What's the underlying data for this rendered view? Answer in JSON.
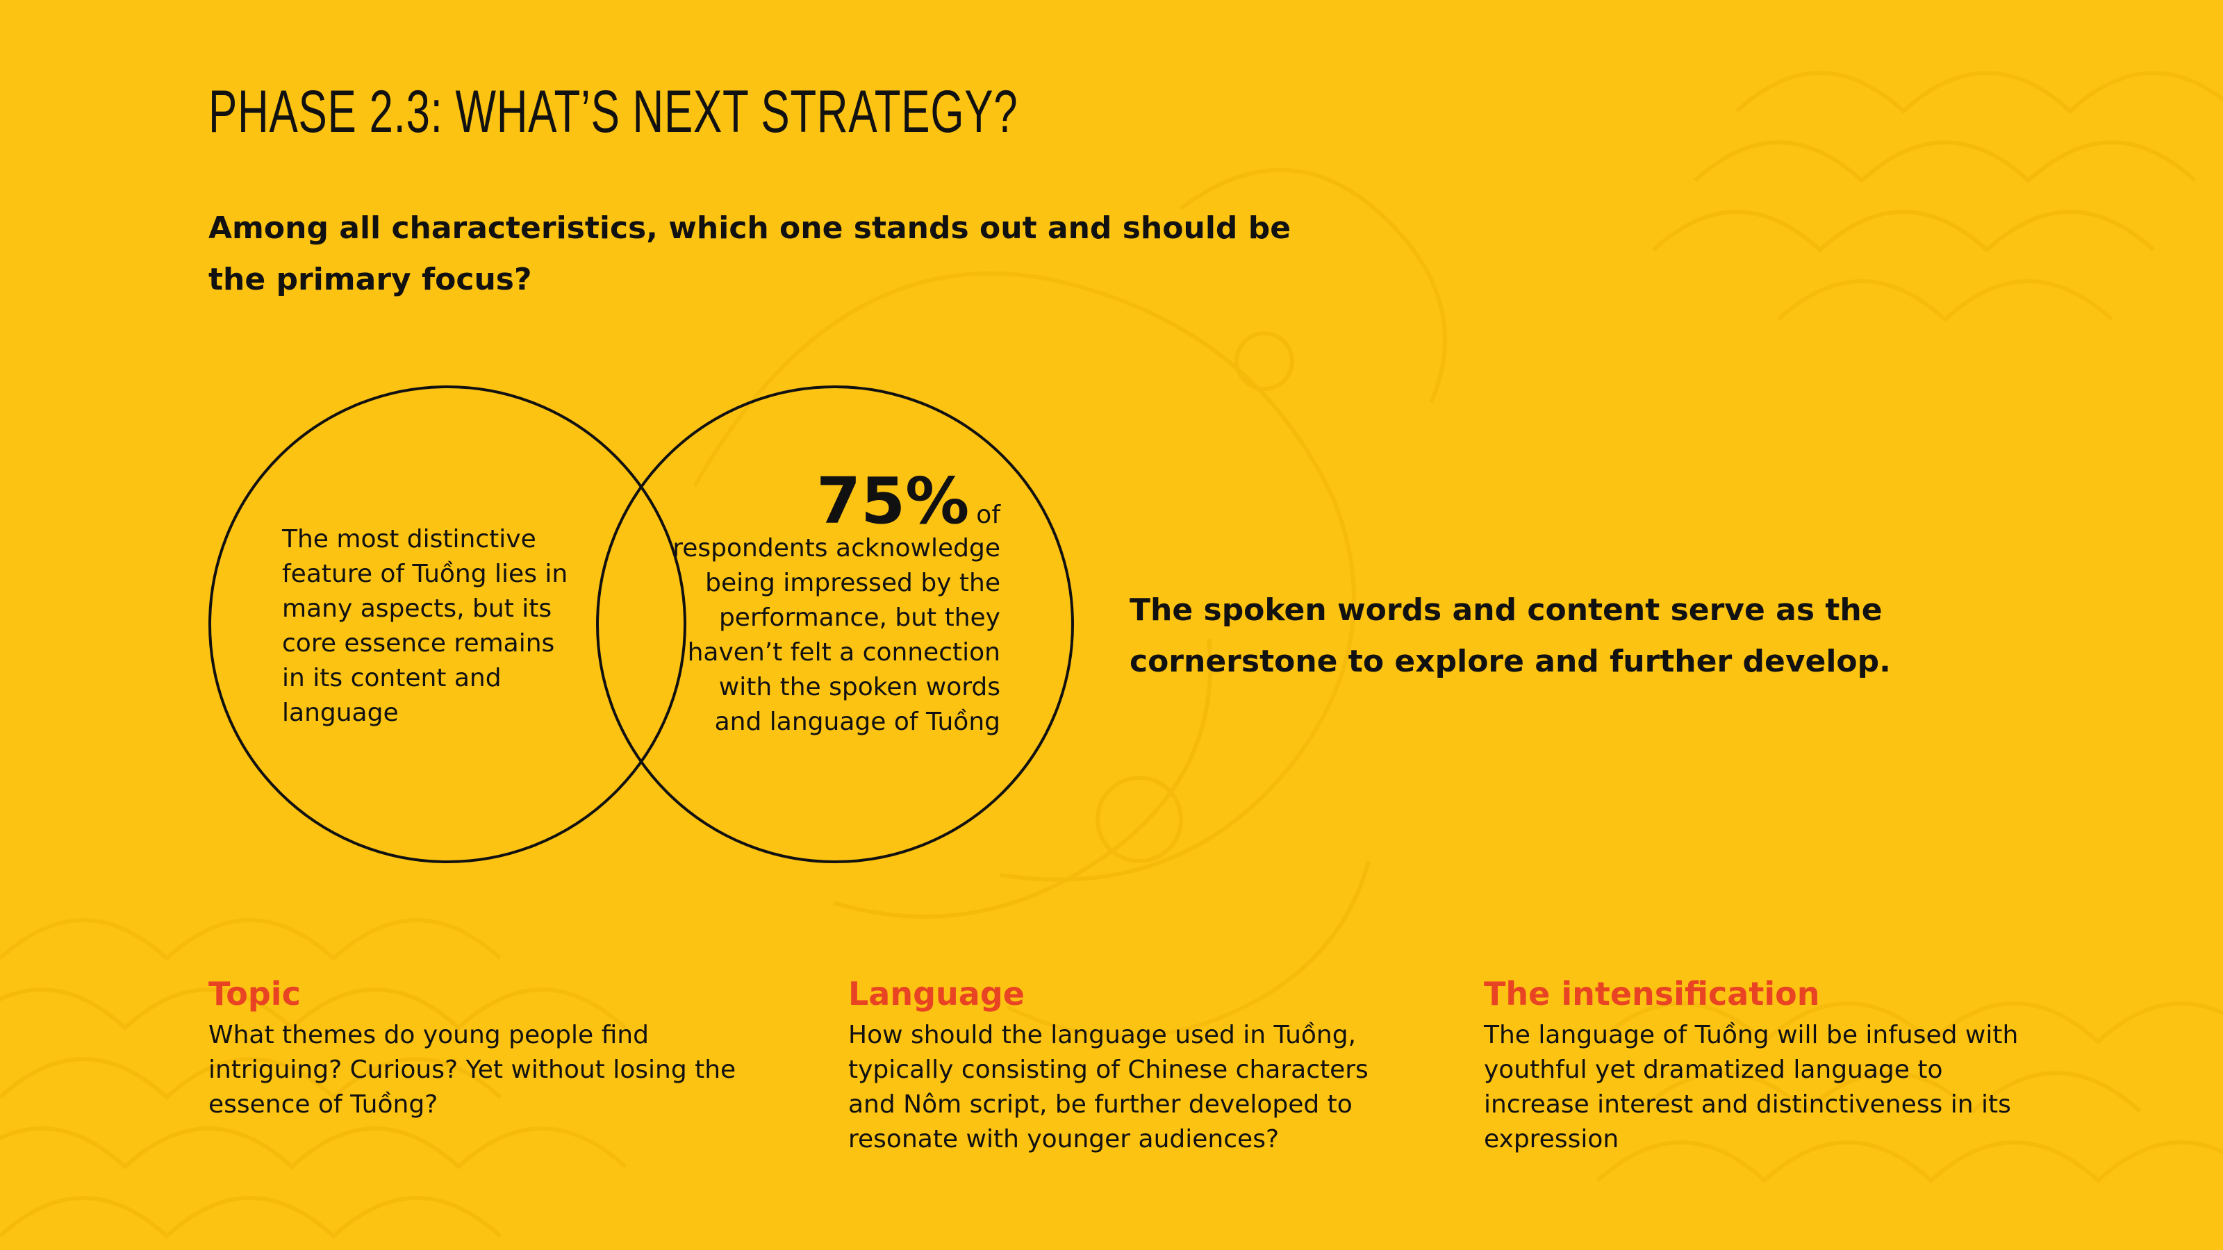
{
  "slide": {
    "title": "PHASE 2.3: WHAT’S NEXT STRATEGY?",
    "question": "Among all characteristics, which one stands out and should be the primary focus?"
  },
  "venn": {
    "left_text": "The most distinctive feature of Tuồng lies in many aspects, but its core essence remains in its content and language",
    "stat_value": "75%",
    "stat_suffix": "of",
    "right_text": "respondents acknowledge being impressed by the performance, but they haven’t felt a connection with the spoken words and language of Tuồng"
  },
  "conclusion": "The spoken words and content serve as the cornerstone to explore and further develop.",
  "columns": [
    {
      "heading": "Topic",
      "body": "What themes do young people find intriguing? Curious? Yet without losing the essence of Tuồng?"
    },
    {
      "heading": "Language",
      "body": "How should the language used in Tuồng, typically consisting of Chinese characters and Nôm script, be further developed to resonate with younger audiences?"
    },
    {
      "heading": "The intensification",
      "body": "The language of Tuồng will be infused with youthful yet dramatized language to increase interest and distinctiveness in its expression"
    }
  ],
  "colors": {
    "background": "#FDC312",
    "text": "#111111",
    "accent": "#E84424",
    "pattern": "#F2B400"
  }
}
